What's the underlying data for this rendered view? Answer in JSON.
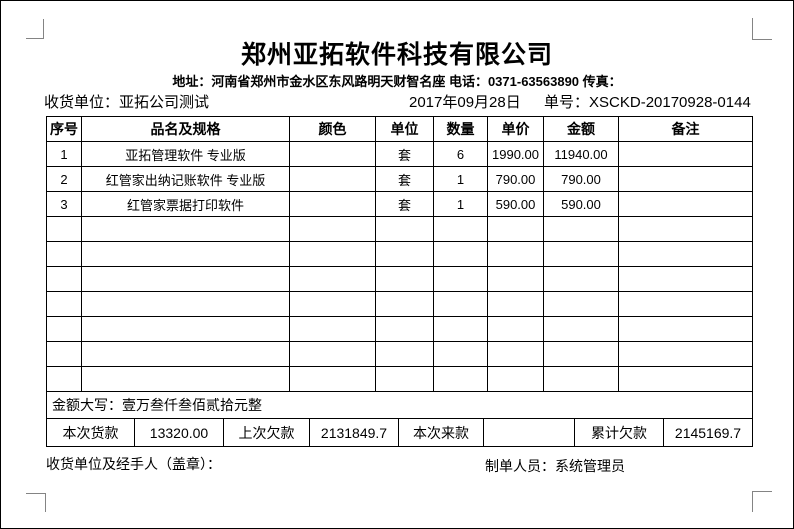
{
  "header": {
    "company_name": "郑州亚拓软件科技有限公司",
    "address_line": "地址：河南省郑州市金水区东风路明天财智名座 电话：0371-63563890 传真："
  },
  "info": {
    "receiver_label": "收货单位：",
    "receiver_value": "亚拓公司测试",
    "date": "2017年09月28日",
    "order_label": "单号：",
    "order_value": "XSCKD-20170928-0144"
  },
  "table": {
    "headers": [
      "序号",
      "品名及规格",
      "颜色",
      "单位",
      "数量",
      "单价",
      "金额",
      "备注"
    ],
    "rows": [
      [
        "1",
        "亚拓管理软件 专业版",
        "",
        "套",
        "6",
        "1990.00",
        "11940.00",
        ""
      ],
      [
        "2",
        "红管家出纳记账软件 专业版",
        "",
        "套",
        "1",
        "790.00",
        "790.00",
        ""
      ],
      [
        "3",
        "红管家票据打印软件",
        "",
        "套",
        "1",
        "590.00",
        "590.00",
        ""
      ],
      [
        "",
        "",
        "",
        "",
        "",
        "",
        "",
        ""
      ],
      [
        "",
        "",
        "",
        "",
        "",
        "",
        "",
        ""
      ],
      [
        "",
        "",
        "",
        "",
        "",
        "",
        "",
        ""
      ],
      [
        "",
        "",
        "",
        "",
        "",
        "",
        "",
        ""
      ],
      [
        "",
        "",
        "",
        "",
        "",
        "",
        "",
        ""
      ],
      [
        "",
        "",
        "",
        "",
        "",
        "",
        "",
        ""
      ],
      [
        "",
        "",
        "",
        "",
        "",
        "",
        "",
        ""
      ]
    ],
    "amount_in_words_label": "金额大写：",
    "amount_in_words_value": "壹万叁仟叁佰贰拾元整"
  },
  "summary": {
    "cells": [
      "本次货款",
      "13320.00",
      "上次欠款",
      "2131849.7",
      "本次来款",
      "",
      "累计欠款",
      "2145169.7"
    ]
  },
  "footer": {
    "left_label": "收货单位及经手人（盖章）：",
    "maker_label": "制单人员：",
    "maker_value": "系统管理员"
  }
}
